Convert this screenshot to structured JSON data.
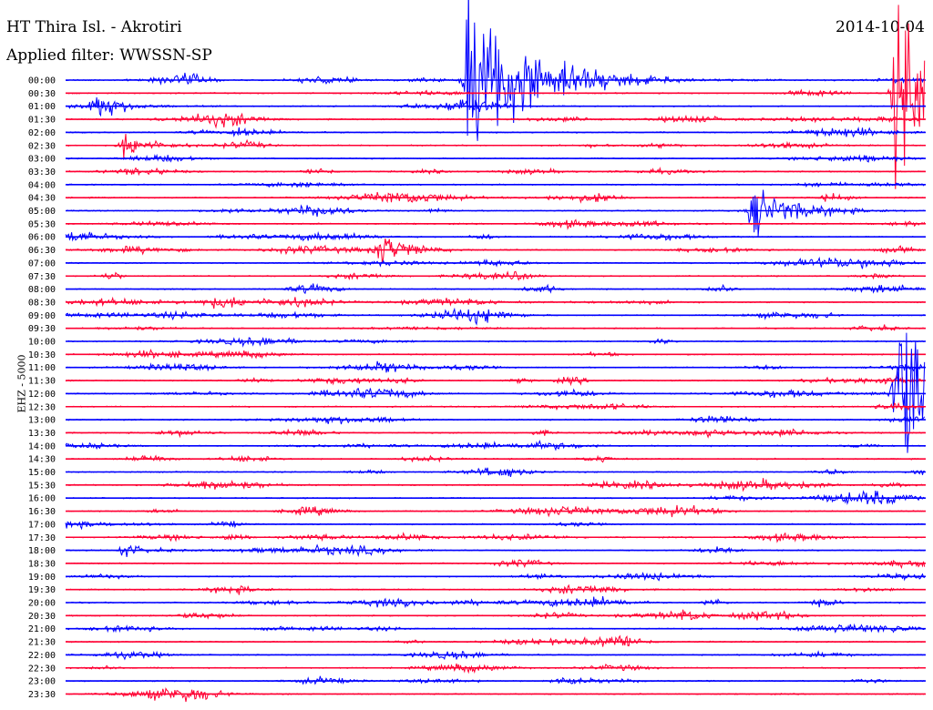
{
  "header": {
    "station": "HT Thira Isl. - Akrotiri",
    "filter": "Applied filter: WWSSN-SP",
    "date": "2014-10-04",
    "channel": "EHZ - 5000"
  },
  "colors": {
    "trace_a": "#0000ff",
    "trace_b": "#ff0033",
    "background": "#ffffff"
  },
  "chart_data": {
    "type": "line",
    "title": "HT Thira Isl. - Akrotiri",
    "subtitle": "Applied filter: WWSSN-SP",
    "ylabel": "EHZ - 5000",
    "grid": false,
    "row_labels": [
      "00:00",
      "00:30",
      "01:00",
      "01:30",
      "02:00",
      "02:30",
      "03:00",
      "03:30",
      "04:00",
      "04:30",
      "05:00",
      "05:30",
      "06:00",
      "06:30",
      "07:00",
      "07:30",
      "08:00",
      "08:30",
      "09:00",
      "09:30",
      "10:00",
      "10:30",
      "11:00",
      "11:30",
      "12:00",
      "12:30",
      "13:00",
      "13:30",
      "14:00",
      "14:30",
      "15:00",
      "15:30",
      "16:00",
      "16:30",
      "17:00",
      "17:30",
      "18:00",
      "18:30",
      "19:00",
      "19:30",
      "20:00",
      "20:30",
      "21:00",
      "21:30",
      "22:00",
      "22:30",
      "23:00",
      "23:30"
    ],
    "row_minutes": 30,
    "events": [
      {
        "row": "00:00",
        "minute": 14,
        "amplitude": "very large",
        "color": "blue"
      },
      {
        "row": "00:30",
        "minute": 29,
        "amplitude": "very large",
        "color": "red"
      },
      {
        "row": "01:00",
        "minute": 1,
        "amplitude": "medium",
        "color": "blue"
      },
      {
        "row": "02:00",
        "minute": 6,
        "amplitude": "small",
        "color": "blue"
      },
      {
        "row": "02:30",
        "minute": 2,
        "amplitude": "medium",
        "color": "red"
      },
      {
        "row": "05:00",
        "minute": 24,
        "amplitude": "large",
        "color": "blue"
      },
      {
        "row": "06:30",
        "minute": 11,
        "amplitude": "medium",
        "color": "red"
      },
      {
        "row": "12:00",
        "minute": 29,
        "amplitude": "very large",
        "color": "blue"
      },
      {
        "row": "18:00",
        "minute": 2,
        "amplitude": "small",
        "color": "blue"
      }
    ]
  }
}
